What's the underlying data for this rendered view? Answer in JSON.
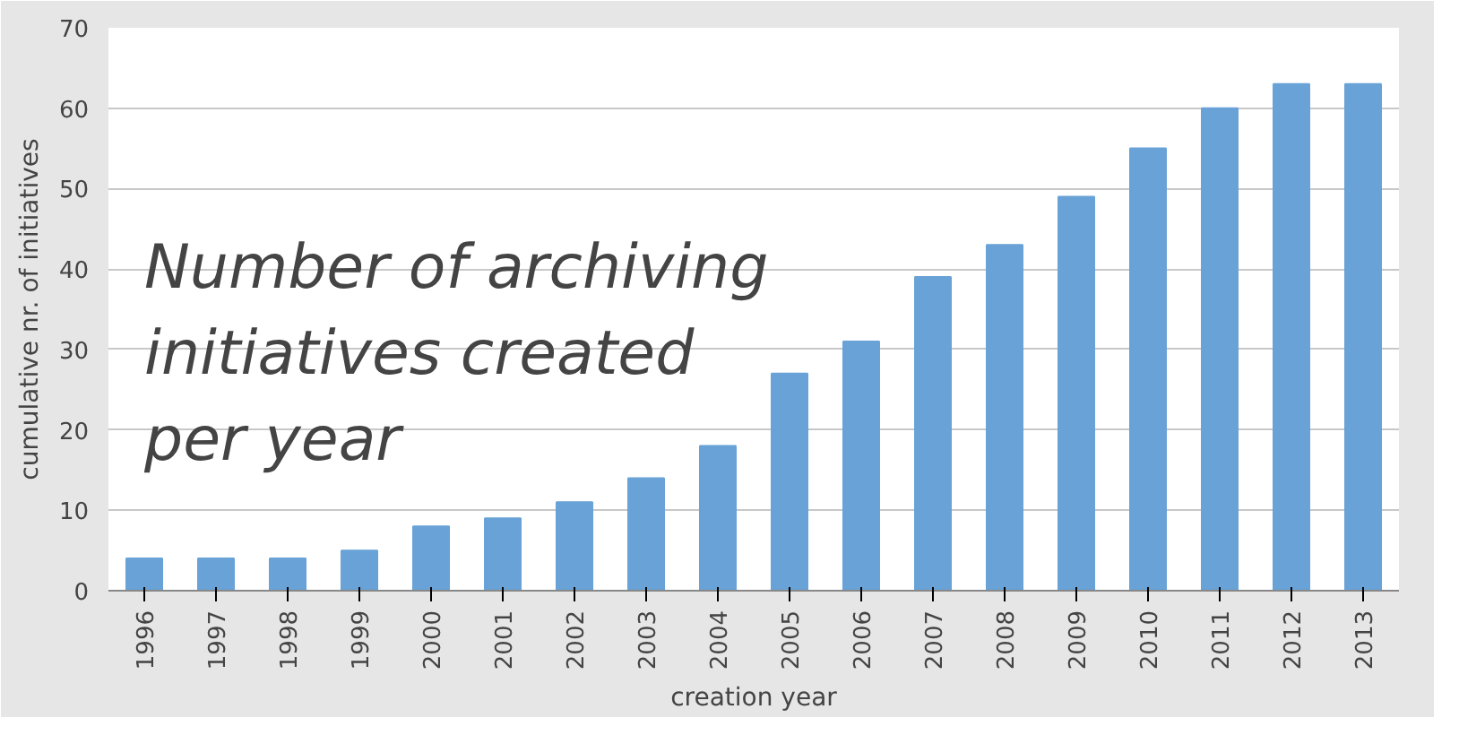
{
  "chart_data": {
    "type": "bar",
    "title": "Number of archiving\ninitiatives created\nper year",
    "xlabel": "creation year",
    "ylabel": "cumulative nr. of initiatives",
    "categories": [
      "1996",
      "1997",
      "1998",
      "1999",
      "2000",
      "2001",
      "2002",
      "2003",
      "2004",
      "2005",
      "2006",
      "2007",
      "2008",
      "2009",
      "2010",
      "2011",
      "2012",
      "2013"
    ],
    "values": [
      4,
      4,
      4,
      5,
      8,
      9,
      11,
      14,
      18,
      27,
      31,
      39,
      43,
      49,
      55,
      60,
      63,
      63
    ],
    "color": "#68a2d6",
    "ylim": [
      0,
      70
    ],
    "yticks": [
      0,
      10,
      20,
      30,
      40,
      50,
      60,
      70
    ],
    "grid": "y"
  }
}
